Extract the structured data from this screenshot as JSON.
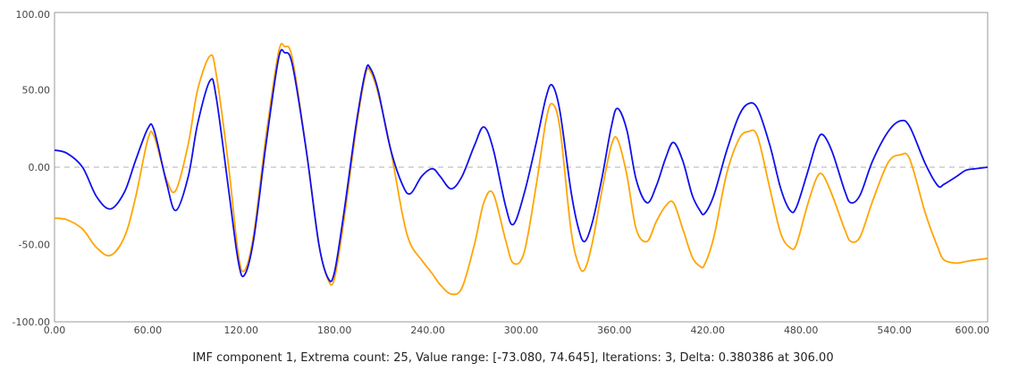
{
  "chart_data": {
    "type": "line",
    "title": "",
    "caption": "IMF component 1, Extrema count: 25, Value range: [-73.080, 74.645], Iterations: 3, Delta: 0.380386 at 306.00",
    "xlabel": "",
    "ylabel": "",
    "xlim": [
      0,
      600
    ],
    "ylim": [
      -100,
      100
    ],
    "x_ticks": [
      "0.00",
      "60.00",
      "120.00",
      "180.00",
      "240.00",
      "300.00",
      "360.00",
      "420.00",
      "480.00",
      "540.00",
      "600.00"
    ],
    "y_ticks": [
      "100.00",
      "50.00",
      "0.00",
      "-50.00",
      "-100.00"
    ],
    "x_tick_values": [
      0,
      60,
      120,
      180,
      240,
      300,
      360,
      420,
      480,
      540,
      600
    ],
    "y_tick_values": [
      100,
      50,
      0,
      -50,
      -100
    ],
    "zero_line": true,
    "grid": false,
    "legend": "none",
    "colors": {
      "series_1": "#1010ee",
      "series_2": "#ffa500",
      "zero_line": "#cccccc",
      "axis": "#999999"
    },
    "series": [
      {
        "color": "#1010ee",
        "points": [
          [
            0,
            11
          ],
          [
            8,
            9
          ],
          [
            18,
            0
          ],
          [
            27,
            -19
          ],
          [
            36,
            -27
          ],
          [
            45,
            -16
          ],
          [
            52,
            4
          ],
          [
            60,
            25
          ],
          [
            64,
            24
          ],
          [
            72,
            -10
          ],
          [
            78,
            -28
          ],
          [
            86,
            -6
          ],
          [
            92,
            28
          ],
          [
            100,
            56
          ],
          [
            104,
            45
          ],
          [
            112,
            -15
          ],
          [
            118,
            -60
          ],
          [
            122,
            -70
          ],
          [
            128,
            -47
          ],
          [
            136,
            15
          ],
          [
            144,
            70
          ],
          [
            148,
            74
          ],
          [
            153,
            66
          ],
          [
            162,
            10
          ],
          [
            170,
            -50
          ],
          [
            176,
            -72
          ],
          [
            180,
            -68
          ],
          [
            186,
            -30
          ],
          [
            194,
            28
          ],
          [
            200,
            62
          ],
          [
            203,
            64
          ],
          [
            208,
            50
          ],
          [
            216,
            12
          ],
          [
            224,
            -12
          ],
          [
            229,
            -17
          ],
          [
            236,
            -6
          ],
          [
            243,
            -1
          ],
          [
            248,
            -6
          ],
          [
            255,
            -14
          ],
          [
            262,
            -6
          ],
          [
            270,
            14
          ],
          [
            276,
            26
          ],
          [
            282,
            12
          ],
          [
            290,
            -25
          ],
          [
            295,
            -37
          ],
          [
            302,
            -17
          ],
          [
            310,
            17
          ],
          [
            316,
            45
          ],
          [
            320,
            53
          ],
          [
            325,
            36
          ],
          [
            332,
            -15
          ],
          [
            337,
            -40
          ],
          [
            341,
            -48
          ],
          [
            346,
            -35
          ],
          [
            352,
            -7
          ],
          [
            358,
            26
          ],
          [
            362,
            38
          ],
          [
            368,
            24
          ],
          [
            374,
            -8
          ],
          [
            381,
            -23
          ],
          [
            387,
            -12
          ],
          [
            393,
            6
          ],
          [
            398,
            16
          ],
          [
            404,
            4
          ],
          [
            410,
            -18
          ],
          [
            415,
            -28
          ],
          [
            418,
            -30
          ],
          [
            424,
            -18
          ],
          [
            432,
            10
          ],
          [
            440,
            33
          ],
          [
            446,
            41
          ],
          [
            452,
            38
          ],
          [
            460,
            14
          ],
          [
            467,
            -14
          ],
          [
            473,
            -28
          ],
          [
            477,
            -26
          ],
          [
            484,
            -4
          ],
          [
            490,
            16
          ],
          [
            494,
            21
          ],
          [
            500,
            10
          ],
          [
            508,
            -15
          ],
          [
            512,
            -23
          ],
          [
            518,
            -18
          ],
          [
            526,
            4
          ],
          [
            536,
            23
          ],
          [
            544,
            30
          ],
          [
            550,
            26
          ],
          [
            560,
            2
          ],
          [
            568,
            -12
          ],
          [
            572,
            -11
          ],
          [
            580,
            -6
          ],
          [
            586,
            -2
          ],
          [
            592,
            -1
          ],
          [
            600,
            0
          ]
        ]
      },
      {
        "color": "#ffa500",
        "points": [
          [
            0,
            -33
          ],
          [
            8,
            -34
          ],
          [
            18,
            -40
          ],
          [
            27,
            -52
          ],
          [
            36,
            -57
          ],
          [
            45,
            -45
          ],
          [
            52,
            -20
          ],
          [
            60,
            18
          ],
          [
            64,
            20
          ],
          [
            72,
            -8
          ],
          [
            78,
            -15
          ],
          [
            86,
            15
          ],
          [
            92,
            50
          ],
          [
            100,
            72
          ],
          [
            104,
            60
          ],
          [
            112,
            0
          ],
          [
            118,
            -55
          ],
          [
            122,
            -67
          ],
          [
            128,
            -44
          ],
          [
            136,
            20
          ],
          [
            144,
            74
          ],
          [
            148,
            78
          ],
          [
            153,
            70
          ],
          [
            162,
            10
          ],
          [
            170,
            -50
          ],
          [
            176,
            -73
          ],
          [
            180,
            -72
          ],
          [
            186,
            -35
          ],
          [
            194,
            25
          ],
          [
            200,
            60
          ],
          [
            203,
            62
          ],
          [
            208,
            48
          ],
          [
            216,
            12
          ],
          [
            224,
            -32
          ],
          [
            229,
            -50
          ],
          [
            236,
            -60
          ],
          [
            243,
            -69
          ],
          [
            248,
            -76
          ],
          [
            255,
            -82
          ],
          [
            262,
            -78
          ],
          [
            270,
            -50
          ],
          [
            276,
            -23
          ],
          [
            282,
            -17
          ],
          [
            290,
            -47
          ],
          [
            295,
            -62
          ],
          [
            302,
            -55
          ],
          [
            310,
            -10
          ],
          [
            316,
            30
          ],
          [
            320,
            41
          ],
          [
            325,
            25
          ],
          [
            332,
            -40
          ],
          [
            337,
            -63
          ],
          [
            341,
            -66
          ],
          [
            346,
            -48
          ],
          [
            352,
            -15
          ],
          [
            358,
            14
          ],
          [
            362,
            18
          ],
          [
            368,
            -5
          ],
          [
            374,
            -40
          ],
          [
            381,
            -48
          ],
          [
            387,
            -35
          ],
          [
            393,
            -25
          ],
          [
            398,
            -23
          ],
          [
            404,
            -40
          ],
          [
            410,
            -58
          ],
          [
            415,
            -64
          ],
          [
            418,
            -63
          ],
          [
            424,
            -45
          ],
          [
            432,
            -5
          ],
          [
            440,
            18
          ],
          [
            446,
            23
          ],
          [
            452,
            20
          ],
          [
            460,
            -14
          ],
          [
            467,
            -43
          ],
          [
            473,
            -52
          ],
          [
            477,
            -50
          ],
          [
            484,
            -25
          ],
          [
            490,
            -7
          ],
          [
            494,
            -5
          ],
          [
            500,
            -18
          ],
          [
            508,
            -40
          ],
          [
            512,
            -48
          ],
          [
            518,
            -45
          ],
          [
            526,
            -22
          ],
          [
            536,
            3
          ],
          [
            544,
            8
          ],
          [
            550,
            5
          ],
          [
            560,
            -30
          ],
          [
            568,
            -52
          ],
          [
            572,
            -60
          ],
          [
            580,
            -62
          ],
          [
            586,
            -61
          ],
          [
            592,
            -60
          ],
          [
            600,
            -59
          ]
        ]
      }
    ]
  }
}
